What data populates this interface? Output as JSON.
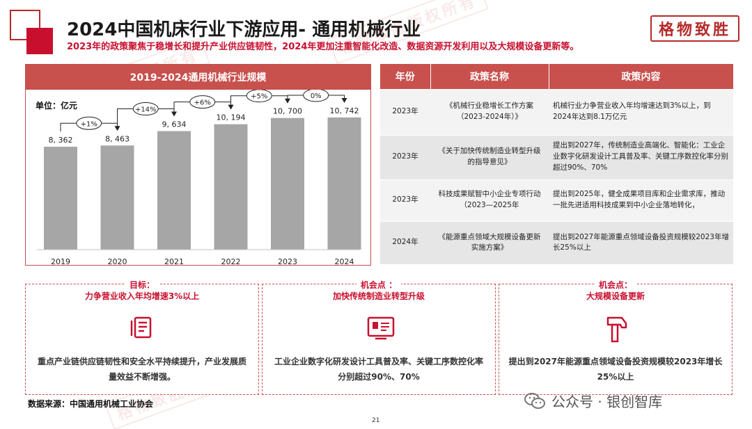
{
  "header": {
    "title": "2024中国机床行业下游应用- 通用机械行业",
    "subtitle": "2023年的政策聚焦于稳增长和提升产业供应链韧性，2024年更加注重智能化改造、数据资源开发利用以及大规模设备更新等。",
    "logo_text": "格物致胜"
  },
  "chart_panel": {
    "title": "2019-2024通用机械行业规模",
    "unit": "单位：亿元"
  },
  "chart_data": {
    "type": "bar",
    "title": "2019-2024通用机械行业规模",
    "categories": [
      "2019",
      "2020",
      "2021",
      "2022",
      "2023",
      "2024"
    ],
    "values": [
      8362,
      8463,
      9634,
      10194,
      10700,
      10742
    ],
    "value_labels": [
      "8, 362",
      "8, 463",
      "9, 634",
      "10, 194",
      "10, 700",
      "10, 742"
    ],
    "growth_labels": [
      "+1%",
      "+14%",
      "+6%",
      "+5%",
      "0%"
    ],
    "ylim": [
      0,
      13000
    ],
    "grid": false,
    "bar_color": "#a6a6a6"
  },
  "policy_table": {
    "headers": [
      "年份",
      "政策名称",
      "政策内容"
    ],
    "rows": [
      {
        "year": "2023年",
        "name": "《机械行业稳增长工作方案（2023-2024年）》",
        "content": "机械行业力争营业收入年均增速达到3%以上，到2024年达到8.1万亿元"
      },
      {
        "year": "2023年",
        "name": "《关于加快传统制造业转型升级的指导意见》",
        "content": "提出到2027年，传统制造业高端化、智能化：工业企业数字化研发设计工具普及率、关键工序数控化率分别超过90%、70%"
      },
      {
        "year": "2023年",
        "name": "科技成果赋智中小企业专项行动（2023—2025年",
        "content": "提出到2025年，健全成果项目库和企业需求库，推动一批先进适用科技成果到中小企业落地转化，"
      },
      {
        "year": "2024年",
        "name": "《能源重点领域大规模设备更新实施方案》",
        "content": "提出到2027年能源重点领域设备投资规模较2023年增长25%以上"
      }
    ]
  },
  "cards": [
    {
      "title_line1": "目标：",
      "title_line2": "力争营业收入年均增速3%以上",
      "icon": "document-list-icon",
      "text": "重点产业链供应链韧性和安全水平持续提升，产业发展质量效益不断增强。"
    },
    {
      "title_line1": "机会点 ：",
      "title_line2": "加快传统制造业转型升级",
      "icon": "certificate-icon",
      "text": "工业企业数字化研发设计工具普及率、关键工序数控化率分别超过90%、70%"
    },
    {
      "title_line1": "机会点：",
      "title_line2": "大规模设备更新",
      "icon": "hammer-icon",
      "text": "提出到2027年能源重点领域设备投资规模较2023年增长25%以上"
    }
  ],
  "footer": {
    "source": "数据来源：中国通用机械工业协会",
    "page_number": "21",
    "wechat": "公众号 · 银创智库"
  },
  "watermark_text": "格物致胜版权所有",
  "colors": {
    "accent": "#c8102e",
    "header_bg": "#c8504d",
    "bar": "#a6a6a6"
  }
}
